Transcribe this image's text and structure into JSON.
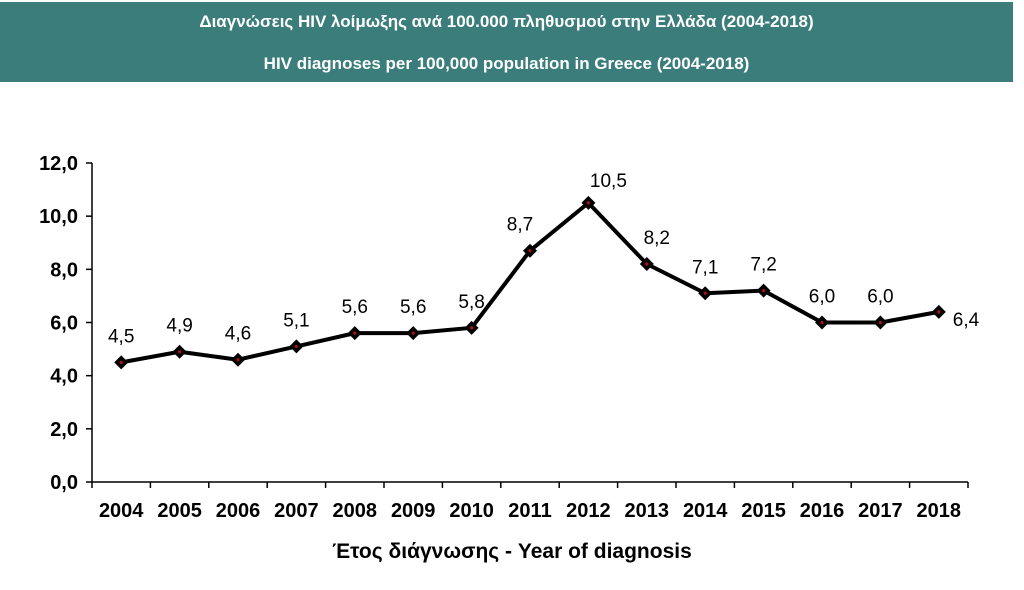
{
  "header": {
    "title_el": "Διαγνώσεις HIV λοίμωξης ανά 100.000 πληθυσμού στην Ελλάδα (2004-2018)",
    "title_en": "HIV diagnoses per 100,000 population in Greece (2004-2018)"
  },
  "colors": {
    "banner": "#3a7d7b",
    "line": "#000000",
    "marker_center": "#b01010"
  },
  "chart_data": {
    "type": "line",
    "title": "HIV diagnoses per 100,000 population in Greece (2004-2018)",
    "xlabel": "Έτος διάγνωσης - Year of diagnosis",
    "ylabel": "",
    "categories": [
      "2004",
      "2005",
      "2006",
      "2007",
      "2008",
      "2009",
      "2010",
      "2011",
      "2012",
      "2013",
      "2014",
      "2015",
      "2016",
      "2017",
      "2018"
    ],
    "values": [
      4.5,
      4.9,
      4.6,
      5.1,
      5.6,
      5.6,
      5.8,
      8.7,
      10.5,
      8.2,
      7.1,
      7.2,
      6.0,
      6.0,
      6.4
    ],
    "data_labels": [
      "4,5",
      "4,9",
      "4,6",
      "5,1",
      "5,6",
      "5,6",
      "5,8",
      "8,7",
      "10,5",
      "8,2",
      "7,1",
      "7,2",
      "6,0",
      "6,0",
      "6,4"
    ],
    "ylim": [
      0,
      12
    ],
    "yticks": [
      0,
      2,
      4,
      6,
      8,
      10,
      12
    ],
    "ytick_labels": [
      "0,0",
      "2,0",
      "4,0",
      "6,0",
      "8,0",
      "10,0",
      "12,0"
    ],
    "grid": false,
    "legend": "none"
  }
}
